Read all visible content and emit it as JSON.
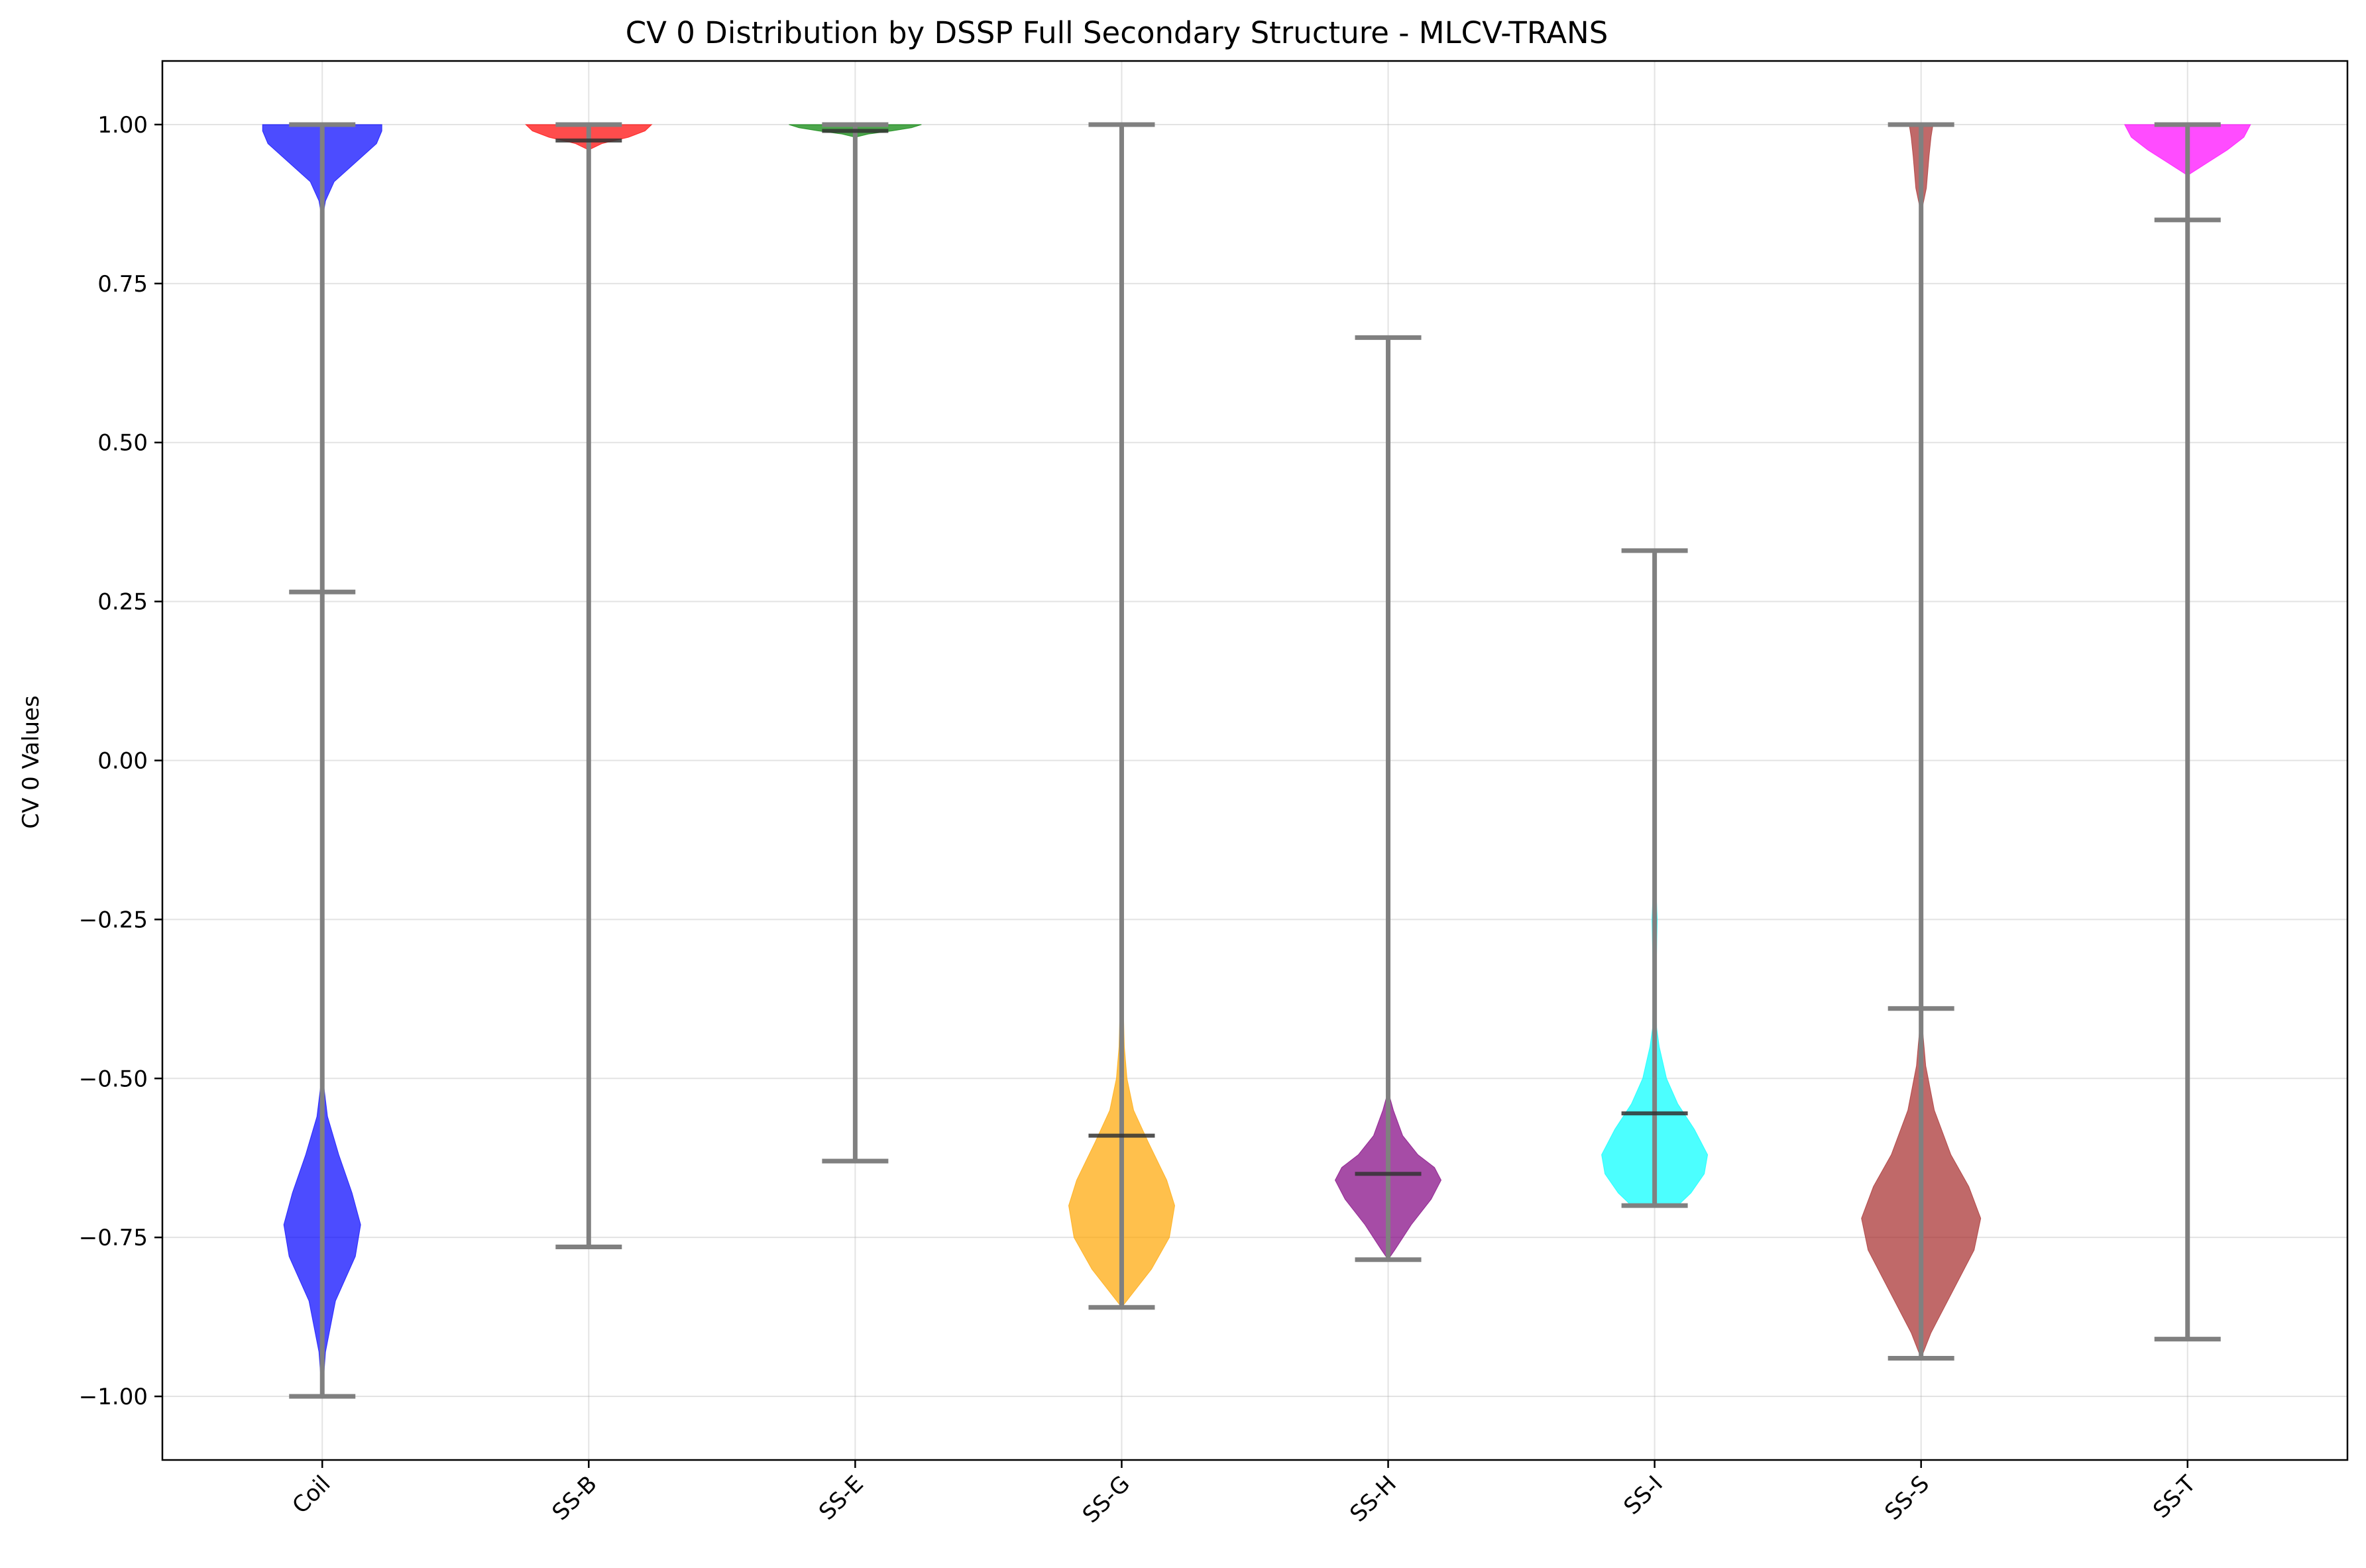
{
  "chart_data": {
    "type": "violin",
    "title": "CV 0 Distribution by DSSP Full Secondary Structure - MLCV-TRANS",
    "xlabel": "",
    "ylabel": "CV 0 Values",
    "ylim": [
      -1.1,
      1.1
    ],
    "yticks": [
      1.0,
      0.75,
      0.5,
      0.25,
      0.0,
      -0.25,
      -0.5,
      -0.75,
      -1.0
    ],
    "ytick_labels": [
      "1.00",
      "0.75",
      "0.50",
      "0.25",
      "0.00",
      "−0.25",
      "−0.50",
      "−0.75",
      "−1.00"
    ],
    "grid": true,
    "categories": [
      "Coil",
      "SS-B",
      "SS-E",
      "SS-G",
      "SS-H",
      "SS-I",
      "SS-S",
      "SS-T"
    ],
    "series": [
      {
        "color": "#0000ff",
        "min": -1.0,
        "max": 1.0,
        "median": 0.265,
        "density": [
          [
            -1.0,
            0.0
          ],
          [
            -0.93,
            0.05
          ],
          [
            -0.85,
            0.2
          ],
          [
            -0.78,
            0.5
          ],
          [
            -0.73,
            0.58
          ],
          [
            -0.68,
            0.45
          ],
          [
            -0.62,
            0.25
          ],
          [
            -0.56,
            0.08
          ],
          [
            -0.5,
            0.01
          ],
          [
            -0.4,
            0.0
          ],
          [
            0.85,
            0.0
          ],
          [
            0.88,
            0.05
          ],
          [
            0.91,
            0.18
          ],
          [
            0.94,
            0.5
          ],
          [
            0.97,
            0.82
          ],
          [
            0.99,
            0.9
          ],
          [
            1.0,
            0.9
          ]
        ]
      },
      {
        "color": "#ff0000",
        "min": -0.765,
        "max": 1.0,
        "median": 0.975,
        "density": [
          [
            0.96,
            0.0
          ],
          [
            0.97,
            0.2
          ],
          [
            0.98,
            0.6
          ],
          [
            0.99,
            0.85
          ],
          [
            1.0,
            0.95
          ]
        ]
      },
      {
        "color": "#008000",
        "min": -0.63,
        "max": 1.0,
        "median": 0.99,
        "density": [
          [
            0.98,
            0.0
          ],
          [
            0.985,
            0.2
          ],
          [
            0.99,
            0.55
          ],
          [
            0.995,
            0.85
          ],
          [
            1.0,
            1.0
          ]
        ]
      },
      {
        "color": "#ffa500",
        "min": -0.86,
        "max": 1.0,
        "median": -0.59,
        "density": [
          [
            -0.86,
            0.0
          ],
          [
            -0.84,
            0.15
          ],
          [
            -0.8,
            0.45
          ],
          [
            -0.75,
            0.72
          ],
          [
            -0.7,
            0.8
          ],
          [
            -0.66,
            0.68
          ],
          [
            -0.6,
            0.4
          ],
          [
            -0.55,
            0.18
          ],
          [
            -0.5,
            0.08
          ],
          [
            -0.45,
            0.04
          ],
          [
            -0.35,
            0.015
          ],
          [
            -0.3,
            0.0
          ],
          [
            0.97,
            0.0
          ],
          [
            1.0,
            0.01
          ]
        ]
      },
      {
        "color": "#800080",
        "min": -0.785,
        "max": 0.665,
        "median": -0.65,
        "density": [
          [
            -0.785,
            0.0
          ],
          [
            -0.77,
            0.1
          ],
          [
            -0.73,
            0.35
          ],
          [
            -0.69,
            0.65
          ],
          [
            -0.66,
            0.8
          ],
          [
            -0.64,
            0.7
          ],
          [
            -0.62,
            0.45
          ],
          [
            -0.59,
            0.22
          ],
          [
            -0.55,
            0.08
          ],
          [
            -0.52,
            0.0
          ]
        ]
      },
      {
        "color": "#00ffff",
        "min": -0.7,
        "max": 0.33,
        "median": -0.555,
        "density": [
          [
            -0.7,
            0.35
          ],
          [
            -0.68,
            0.55
          ],
          [
            -0.65,
            0.75
          ],
          [
            -0.62,
            0.8
          ],
          [
            -0.58,
            0.6
          ],
          [
            -0.54,
            0.35
          ],
          [
            -0.5,
            0.18
          ],
          [
            -0.45,
            0.07
          ],
          [
            -0.42,
            0.03
          ],
          [
            -0.35,
            0.02
          ],
          [
            -0.3,
            0.03
          ],
          [
            -0.25,
            0.04
          ],
          [
            -0.2,
            0.02
          ],
          [
            -0.15,
            0.0
          ]
        ]
      },
      {
        "color": "#a52a2a",
        "min": -0.94,
        "max": 1.0,
        "median": -0.39,
        "density": [
          [
            -0.94,
            0.0
          ],
          [
            -0.9,
            0.15
          ],
          [
            -0.84,
            0.45
          ],
          [
            -0.77,
            0.8
          ],
          [
            -0.72,
            0.9
          ],
          [
            -0.67,
            0.72
          ],
          [
            -0.62,
            0.45
          ],
          [
            -0.55,
            0.2
          ],
          [
            -0.48,
            0.07
          ],
          [
            -0.42,
            0.02
          ],
          [
            -0.38,
            0.0
          ],
          [
            0.86,
            0.0
          ],
          [
            0.9,
            0.08
          ],
          [
            0.95,
            0.12
          ],
          [
            0.98,
            0.15
          ],
          [
            1.0,
            0.18
          ]
        ]
      },
      {
        "color": "#ff00ff",
        "min": -0.91,
        "max": 1.0,
        "median": 0.85,
        "density": [
          [
            0.92,
            0.0
          ],
          [
            0.94,
            0.3
          ],
          [
            0.96,
            0.6
          ],
          [
            0.98,
            0.85
          ],
          [
            1.0,
            0.95
          ]
        ]
      }
    ]
  }
}
